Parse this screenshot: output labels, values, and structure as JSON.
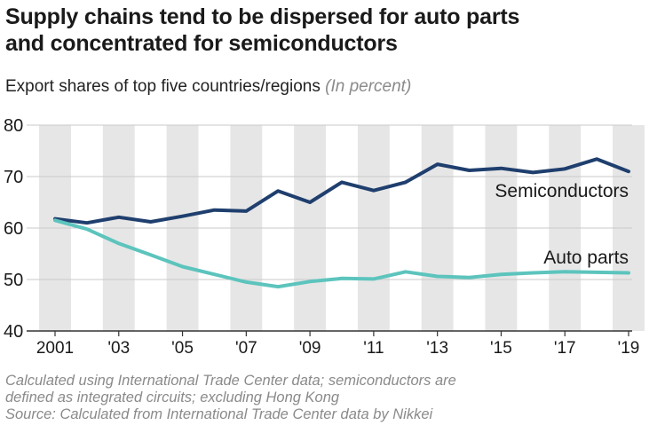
{
  "title_line1": "Supply chains tend to be dispersed for auto parts",
  "title_line2": "and concentrated for semiconductors",
  "subtitle": "Export shares of top five countries/regions",
  "unit": "(In percent)",
  "notes": [
    "Calculated using International Trade Center data; semiconductors are",
    "defined as integrated circuits; excluding Hong Kong",
    "Source: Calculated from International Trade Center data by Nikkei"
  ],
  "colors": {
    "semiconductors": "#1f3f6e",
    "auto_parts": "#5cc4bd",
    "stripe": "#e6e6e6",
    "grid": "#c9c9c9"
  },
  "chart_data": {
    "type": "line",
    "x": [
      2001,
      2002,
      2003,
      2004,
      2005,
      2006,
      2007,
      2008,
      2009,
      2010,
      2011,
      2012,
      2013,
      2014,
      2015,
      2016,
      2017,
      2018,
      2019
    ],
    "xtick_values": [
      2001,
      2003,
      2005,
      2007,
      2009,
      2011,
      2013,
      2015,
      2017,
      2019
    ],
    "xtick_labels": [
      "2001",
      "'03",
      "'05",
      "'07",
      "'09",
      "'11",
      "'13",
      "'15",
      "'17",
      "'19"
    ],
    "yticks": [
      40,
      50,
      60,
      70,
      80
    ],
    "ylim": [
      40,
      80
    ],
    "xlim": [
      2001,
      2019
    ],
    "series": [
      {
        "name": "Semiconductors",
        "color": "#1f3f6e",
        "values": [
          61.8,
          61.0,
          62.1,
          61.2,
          62.3,
          63.5,
          63.3,
          67.2,
          65.0,
          68.9,
          67.3,
          68.9,
          72.4,
          71.2,
          71.6,
          70.8,
          71.5,
          73.4,
          71.0
        ]
      },
      {
        "name": "Auto parts",
        "color": "#5cc4bd",
        "values": [
          61.5,
          59.8,
          57.0,
          54.8,
          52.5,
          51.0,
          49.5,
          48.6,
          49.6,
          50.2,
          50.1,
          51.5,
          50.6,
          50.4,
          51.0,
          51.3,
          51.5,
          51.4,
          51.3
        ]
      }
    ],
    "grid": true
  }
}
